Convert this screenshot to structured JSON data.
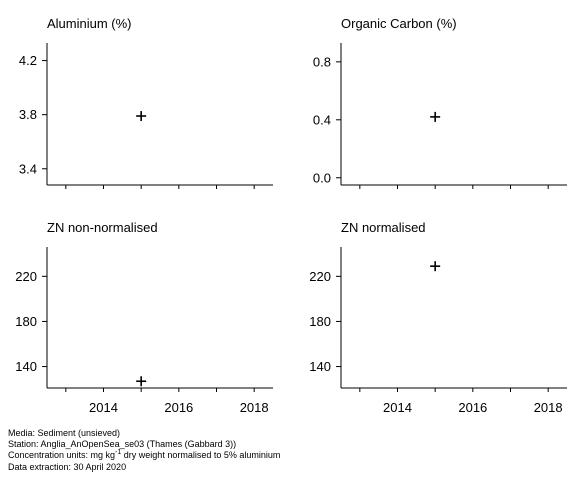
{
  "chart_data": [
    {
      "type": "scatter",
      "title": "Aluminium (%)",
      "xlim": [
        2012.5,
        2018.5
      ],
      "ylim": [
        3.28,
        4.33
      ],
      "yticks": [
        {
          "value": 4.2,
          "label": "4.2"
        },
        {
          "value": 3.8,
          "label": "3.8"
        },
        {
          "value": 3.4,
          "label": "3.4"
        }
      ],
      "xticks": [],
      "xminor": [
        2013,
        2014,
        2015,
        2016,
        2017,
        2018
      ],
      "points": [
        {
          "x": 2015,
          "y": 3.79
        }
      ]
    },
    {
      "type": "scatter",
      "title": "Organic Carbon (%)",
      "xlim": [
        2012.5,
        2018.5
      ],
      "ylim": [
        -0.05,
        0.93
      ],
      "yticks": [
        {
          "value": 0.8,
          "label": "0.8"
        },
        {
          "value": 0.4,
          "label": "0.4"
        },
        {
          "value": 0.0,
          "label": "0.0"
        }
      ],
      "xticks": [],
      "xminor": [
        2013,
        2014,
        2015,
        2016,
        2017,
        2018
      ],
      "points": [
        {
          "x": 2015,
          "y": 0.42
        }
      ]
    },
    {
      "type": "scatter",
      "title": "ZN non-normalised",
      "xlim": [
        2012.5,
        2018.5
      ],
      "ylim": [
        121,
        246
      ],
      "yticks": [
        {
          "value": 220,
          "label": "220"
        },
        {
          "value": 180,
          "label": "180"
        },
        {
          "value": 140,
          "label": "140"
        }
      ],
      "xticks": [
        {
          "value": 2014,
          "label": "2014"
        },
        {
          "value": 2016,
          "label": "2016"
        },
        {
          "value": 2018,
          "label": "2018"
        }
      ],
      "xminor": [
        2013,
        2014,
        2015,
        2016,
        2017,
        2018
      ],
      "points": [
        {
          "x": 2015,
          "y": 127
        }
      ]
    },
    {
      "type": "scatter",
      "title": "ZN normalised",
      "xlim": [
        2012.5,
        2018.5
      ],
      "ylim": [
        121,
        246
      ],
      "yticks": [
        {
          "value": 220,
          "label": "220"
        },
        {
          "value": 180,
          "label": "180"
        },
        {
          "value": 140,
          "label": "140"
        }
      ],
      "xticks": [
        {
          "value": 2014,
          "label": "2014"
        },
        {
          "value": 2016,
          "label": "2016"
        },
        {
          "value": 2018,
          "label": "2018"
        }
      ],
      "xminor": [
        2013,
        2014,
        2015,
        2016,
        2017,
        2018
      ],
      "points": [
        {
          "x": 2015,
          "y": 229
        }
      ]
    }
  ],
  "footer": {
    "media": "Media: Sediment (unsieved)",
    "station": "Station: Anglia_AnOpenSea_se03 (Thames (Gabbard 3))",
    "units_prefix": "Concentration units:  mg kg",
    "units_sup": "-1",
    "units_suffix": " dry weight normalised to 5% aluminium",
    "extraction": "Data extraction: 30 April 2020"
  }
}
